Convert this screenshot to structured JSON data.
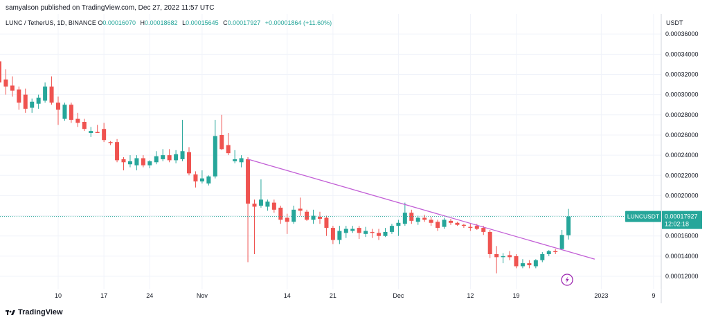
{
  "header": {
    "published": "samyalson published on TradingView.com, Dec 27, 2022 11:57 UTC"
  },
  "legend": {
    "symbol": "LUNC / TetherUS, 1D, BINANCE",
    "o_label": "O",
    "o_value": "0.00016070",
    "h_label": "H",
    "h_value": "0.00018682",
    "l_label": "L",
    "l_value": "0.00015645",
    "c_label": "C",
    "c_value": "0.00017927",
    "change": "+0.00001864 (+11.60%)"
  },
  "price_tag": {
    "symbol": "LUNCUSDT",
    "price": "0.00017927",
    "countdown": "12:02:18"
  },
  "footer": {
    "brand": "TradingView"
  },
  "colors": {
    "up": "#26a69a",
    "down": "#ef5350",
    "trendline": "#c25fd6",
    "grid": "#f0f3fa",
    "axis_text": "#131722"
  },
  "chart_data": {
    "type": "candlestick",
    "title": "LUNC / TetherUS, 1D, BINANCE",
    "ylabel": "USDT",
    "ylim": [
      0.000107,
      0.00038
    ],
    "y_ticks": [
      "0.00012000",
      "0.00014000",
      "0.00016000",
      "0.00018000",
      "0.00020000",
      "0.00022000",
      "0.00024000",
      "0.00026000",
      "0.00028000",
      "0.00030000",
      "0.00032000",
      "0.00034000",
      "0.00036000"
    ],
    "x_ticks": [
      {
        "label": "10",
        "date": "2022-10-10"
      },
      {
        "label": "17",
        "date": "2022-10-17"
      },
      {
        "label": "24",
        "date": "2022-10-24"
      },
      {
        "label": "Nov",
        "date": "2022-11-01"
      },
      {
        "label": "14",
        "date": "2022-11-14"
      },
      {
        "label": "21",
        "date": "2022-11-21"
      },
      {
        "label": "Dec",
        "date": "2022-12-01"
      },
      {
        "label": "12",
        "date": "2022-12-12"
      },
      {
        "label": "19",
        "date": "2022-12-19"
      },
      {
        "label": "2023",
        "date": "2023-01-01"
      },
      {
        "label": "9",
        "date": "2023-01-09"
      }
    ],
    "candles": [
      {
        "date": "2022-09-30",
        "o": 0.000335,
        "h": 0.00034,
        "l": 0.000325,
        "c": 0.000332
      },
      {
        "date": "2022-10-01",
        "o": 0.000333,
        "h": 0.00035,
        "l": 0.0003,
        "c": 0.000312
      },
      {
        "date": "2022-10-02",
        "o": 0.000315,
        "h": 0.000325,
        "l": 0.0003,
        "c": 0.000308
      },
      {
        "date": "2022-10-03",
        "o": 0.000309,
        "h": 0.000318,
        "l": 0.000298,
        "c": 0.000304
      },
      {
        "date": "2022-10-04",
        "o": 0.000305,
        "h": 0.000308,
        "l": 0.000285,
        "c": 0.000292
      },
      {
        "date": "2022-10-05",
        "o": 0.0003,
        "h": 0.000306,
        "l": 0.000282,
        "c": 0.000286
      },
      {
        "date": "2022-10-06",
        "o": 0.000287,
        "h": 0.000296,
        "l": 0.000282,
        "c": 0.000293
      },
      {
        "date": "2022-10-07",
        "o": 0.000291,
        "h": 0.0003,
        "l": 0.000286,
        "c": 0.000297
      },
      {
        "date": "2022-10-08",
        "o": 0.000294,
        "h": 0.000312,
        "l": 0.000292,
        "c": 0.000308
      },
      {
        "date": "2022-10-09",
        "o": 0.000308,
        "h": 0.000318,
        "l": 0.00029,
        "c": 0.000292
      },
      {
        "date": "2022-10-10",
        "o": 0.000292,
        "h": 0.000298,
        "l": 0.00027,
        "c": 0.000285
      },
      {
        "date": "2022-10-11",
        "o": 0.000276,
        "h": 0.000292,
        "l": 0.000274,
        "c": 0.00029
      },
      {
        "date": "2022-10-12",
        "o": 0.00029,
        "h": 0.000292,
        "l": 0.000272,
        "c": 0.000275
      },
      {
        "date": "2022-10-13",
        "o": 0.000276,
        "h": 0.000282,
        "l": 0.000268,
        "c": 0.000272
      },
      {
        "date": "2022-10-14",
        "o": 0.000273,
        "h": 0.000276,
        "l": 0.000264,
        "c": 0.000266
      },
      {
        "date": "2022-10-15",
        "o": 0.000262,
        "h": 0.000268,
        "l": 0.000258,
        "c": 0.000264
      },
      {
        "date": "2022-10-16",
        "o": 0.000263,
        "h": 0.00027,
        "l": 0.000262,
        "c": 0.000262
      },
      {
        "date": "2022-10-17",
        "o": 0.000266,
        "h": 0.000272,
        "l": 0.000253,
        "c": 0.000255
      },
      {
        "date": "2022-10-18",
        "o": 0.000253,
        "h": 0.000254,
        "l": 0.00025,
        "c": 0.000252
      },
      {
        "date": "2022-10-19",
        "o": 0.000253,
        "h": 0.000256,
        "l": 0.000233,
        "c": 0.000235
      },
      {
        "date": "2022-10-20",
        "o": 0.000236,
        "h": 0.000238,
        "l": 0.000225,
        "c": 0.000233
      },
      {
        "date": "2022-10-21",
        "o": 0.000231,
        "h": 0.00024,
        "l": 0.000228,
        "c": 0.000234
      },
      {
        "date": "2022-10-22",
        "o": 0.00023,
        "h": 0.00024,
        "l": 0.000225,
        "c": 0.000237
      },
      {
        "date": "2022-10-23",
        "o": 0.000237,
        "h": 0.00024,
        "l": 0.000228,
        "c": 0.00023
      },
      {
        "date": "2022-10-24",
        "o": 0.00023,
        "h": 0.000235,
        "l": 0.000227,
        "c": 0.000234
      },
      {
        "date": "2022-10-25",
        "o": 0.000233,
        "h": 0.000244,
        "l": 0.000231,
        "c": 0.000239
      },
      {
        "date": "2022-10-26",
        "o": 0.000236,
        "h": 0.000246,
        "l": 0.000234,
        "c": 0.00024
      },
      {
        "date": "2022-10-27",
        "o": 0.00024,
        "h": 0.000246,
        "l": 0.000233,
        "c": 0.000235
      },
      {
        "date": "2022-10-28",
        "o": 0.000235,
        "h": 0.000245,
        "l": 0.000232,
        "c": 0.000241
      },
      {
        "date": "2022-10-29",
        "o": 0.000236,
        "h": 0.000275,
        "l": 0.000234,
        "c": 0.000244
      },
      {
        "date": "2022-10-30",
        "o": 0.000243,
        "h": 0.000248,
        "l": 0.00022,
        "c": 0.000222
      },
      {
        "date": "2022-10-31",
        "o": 0.000221,
        "h": 0.000224,
        "l": 0.000208,
        "c": 0.000214
      },
      {
        "date": "2022-11-01",
        "o": 0.000214,
        "h": 0.000225,
        "l": 0.000212,
        "c": 0.000217
      },
      {
        "date": "2022-11-02",
        "o": 0.000212,
        "h": 0.00022,
        "l": 0.00021,
        "c": 0.000219
      },
      {
        "date": "2022-11-03",
        "o": 0.000219,
        "h": 0.000275,
        "l": 0.000217,
        "c": 0.000259
      },
      {
        "date": "2022-11-04",
        "o": 0.00026,
        "h": 0.00028,
        "l": 0.000245,
        "c": 0.000246
      },
      {
        "date": "2022-11-05",
        "o": 0.00025,
        "h": 0.000262,
        "l": 0.00024,
        "c": 0.000242
      },
      {
        "date": "2022-11-06",
        "o": 0.000234,
        "h": 0.000245,
        "l": 0.000232,
        "c": 0.000236
      },
      {
        "date": "2022-11-07",
        "o": 0.000233,
        "h": 0.00024,
        "l": 0.000228,
        "c": 0.000237
      },
      {
        "date": "2022-11-08",
        "o": 0.000236,
        "h": 0.000238,
        "l": 0.000134,
        "c": 0.000192
      },
      {
        "date": "2022-11-09",
        "o": 0.000192,
        "h": 0.000196,
        "l": 0.000142,
        "c": 0.000189
      },
      {
        "date": "2022-11-10",
        "o": 0.00019,
        "h": 0.000216,
        "l": 0.000188,
        "c": 0.000196
      },
      {
        "date": "2022-11-11",
        "o": 0.000189,
        "h": 0.000196,
        "l": 0.000185,
        "c": 0.000194
      },
      {
        "date": "2022-11-12",
        "o": 0.000193,
        "h": 0.000196,
        "l": 0.000183,
        "c": 0.000186
      },
      {
        "date": "2022-11-13",
        "o": 0.000188,
        "h": 0.00019,
        "l": 0.000172,
        "c": 0.000176
      },
      {
        "date": "2022-11-14",
        "o": 0.000178,
        "h": 0.000182,
        "l": 0.000162,
        "c": 0.000174
      },
      {
        "date": "2022-11-15",
        "o": 0.000174,
        "h": 0.00019,
        "l": 0.000172,
        "c": 0.000186
      },
      {
        "date": "2022-11-16",
        "o": 0.000187,
        "h": 0.000198,
        "l": 0.00018,
        "c": 0.000185
      },
      {
        "date": "2022-11-17",
        "o": 0.000184,
        "h": 0.000186,
        "l": 0.000175,
        "c": 0.000176
      },
      {
        "date": "2022-11-18",
        "o": 0.000176,
        "h": 0.000186,
        "l": 0.000172,
        "c": 0.00018
      },
      {
        "date": "2022-11-19",
        "o": 0.000179,
        "h": 0.000184,
        "l": 0.000172,
        "c": 0.000177
      },
      {
        "date": "2022-11-20",
        "o": 0.000178,
        "h": 0.00018,
        "l": 0.00016,
        "c": 0.000168
      },
      {
        "date": "2022-11-21",
        "o": 0.000168,
        "h": 0.00017,
        "l": 0.000152,
        "c": 0.000156
      },
      {
        "date": "2022-11-22",
        "o": 0.000156,
        "h": 0.00017,
        "l": 0.000152,
        "c": 0.000165
      },
      {
        "date": "2022-11-23",
        "o": 0.000163,
        "h": 0.00017,
        "l": 0.000158,
        "c": 0.000167
      },
      {
        "date": "2022-11-24",
        "o": 0.000165,
        "h": 0.00017,
        "l": 0.000163,
        "c": 0.000167
      },
      {
        "date": "2022-11-25",
        "o": 0.000168,
        "h": 0.00017,
        "l": 0.000157,
        "c": 0.000163
      },
      {
        "date": "2022-11-26",
        "o": 0.000162,
        "h": 0.000169,
        "l": 0.000159,
        "c": 0.000165
      },
      {
        "date": "2022-11-27",
        "o": 0.000164,
        "h": 0.000167,
        "l": 0.000158,
        "c": 0.000163
      },
      {
        "date": "2022-11-28",
        "o": 0.000163,
        "h": 0.000167,
        "l": 0.000156,
        "c": 0.00016
      },
      {
        "date": "2022-11-29",
        "o": 0.00016,
        "h": 0.000168,
        "l": 0.000159,
        "c": 0.000164
      },
      {
        "date": "2022-11-30",
        "o": 0.000164,
        "h": 0.000172,
        "l": 0.000162,
        "c": 0.00017
      },
      {
        "date": "2022-12-01",
        "o": 0.00017,
        "h": 0.000176,
        "l": 0.00016,
        "c": 0.000173
      },
      {
        "date": "2022-12-02",
        "o": 0.000172,
        "h": 0.000193,
        "l": 0.00017,
        "c": 0.000183
      },
      {
        "date": "2022-12-03",
        "o": 0.000183,
        "h": 0.000186,
        "l": 0.000172,
        "c": 0.000175
      },
      {
        "date": "2022-12-04",
        "o": 0.000174,
        "h": 0.00018,
        "l": 0.000171,
        "c": 0.000178
      },
      {
        "date": "2022-12-05",
        "o": 0.000178,
        "h": 0.000181,
        "l": 0.000174,
        "c": 0.000176
      },
      {
        "date": "2022-12-06",
        "o": 0.000176,
        "h": 0.000179,
        "l": 0.00017,
        "c": 0.000173
      },
      {
        "date": "2022-12-07",
        "o": 0.000174,
        "h": 0.000176,
        "l": 0.000165,
        "c": 0.000168
      },
      {
        "date": "2022-12-08",
        "o": 0.000169,
        "h": 0.000178,
        "l": 0.000167,
        "c": 0.000176
      },
      {
        "date": "2022-12-09",
        "o": 0.000175,
        "h": 0.000177,
        "l": 0.000171,
        "c": 0.000173
      },
      {
        "date": "2022-12-10",
        "o": 0.000173,
        "h": 0.000174,
        "l": 0.00017,
        "c": 0.000171
      },
      {
        "date": "2022-12-11",
        "o": 0.000171,
        "h": 0.000172,
        "l": 0.000168,
        "c": 0.00017
      },
      {
        "date": "2022-12-12",
        "o": 0.000169,
        "h": 0.000172,
        "l": 0.000165,
        "c": 0.000168
      },
      {
        "date": "2022-12-13",
        "o": 0.00017,
        "h": 0.000172,
        "l": 0.000166,
        "c": 0.000167
      },
      {
        "date": "2022-12-14",
        "o": 0.000168,
        "h": 0.00017,
        "l": 0.000161,
        "c": 0.000164
      },
      {
        "date": "2022-12-15",
        "o": 0.000164,
        "h": 0.000166,
        "l": 0.000138,
        "c": 0.000142
      },
      {
        "date": "2022-12-16",
        "o": 0.000142,
        "h": 0.00015,
        "l": 0.000123,
        "c": 0.000139
      },
      {
        "date": "2022-12-17",
        "o": 0.000139,
        "h": 0.000143,
        "l": 0.000133,
        "c": 0.00014
      },
      {
        "date": "2022-12-18",
        "o": 0.000141,
        "h": 0.000145,
        "l": 0.000136,
        "c": 0.000139
      },
      {
        "date": "2022-12-19",
        "o": 0.00014,
        "h": 0.000142,
        "l": 0.000128,
        "c": 0.00013
      },
      {
        "date": "2022-12-20",
        "o": 0.00013,
        "h": 0.000137,
        "l": 0.000128,
        "c": 0.000133
      },
      {
        "date": "2022-12-21",
        "o": 0.000133,
        "h": 0.000136,
        "l": 0.000128,
        "c": 0.000131
      },
      {
        "date": "2022-12-22",
        "o": 0.00013,
        "h": 0.000137,
        "l": 0.000128,
        "c": 0.000136
      },
      {
        "date": "2022-12-23",
        "o": 0.000136,
        "h": 0.000144,
        "l": 0.000134,
        "c": 0.000142
      },
      {
        "date": "2022-12-24",
        "o": 0.000142,
        "h": 0.000146,
        "l": 0.00014,
        "c": 0.000145
      },
      {
        "date": "2022-12-25",
        "o": 0.000145,
        "h": 0.000147,
        "l": 0.000142,
        "c": 0.000144
      },
      {
        "date": "2022-12-26",
        "o": 0.000147,
        "h": 0.000166,
        "l": 0.000146,
        "c": 0.000161
      },
      {
        "date": "2022-12-27",
        "o": 0.0001607,
        "h": 0.00018682,
        "l": 0.00015645,
        "c": 0.00017927
      }
    ],
    "current_price": 0.00017927,
    "trendline": {
      "start": {
        "date": "2022-11-08",
        "value": 0.000236
      },
      "end": {
        "date": "2022-12-31",
        "value": 0.000137
      }
    }
  }
}
